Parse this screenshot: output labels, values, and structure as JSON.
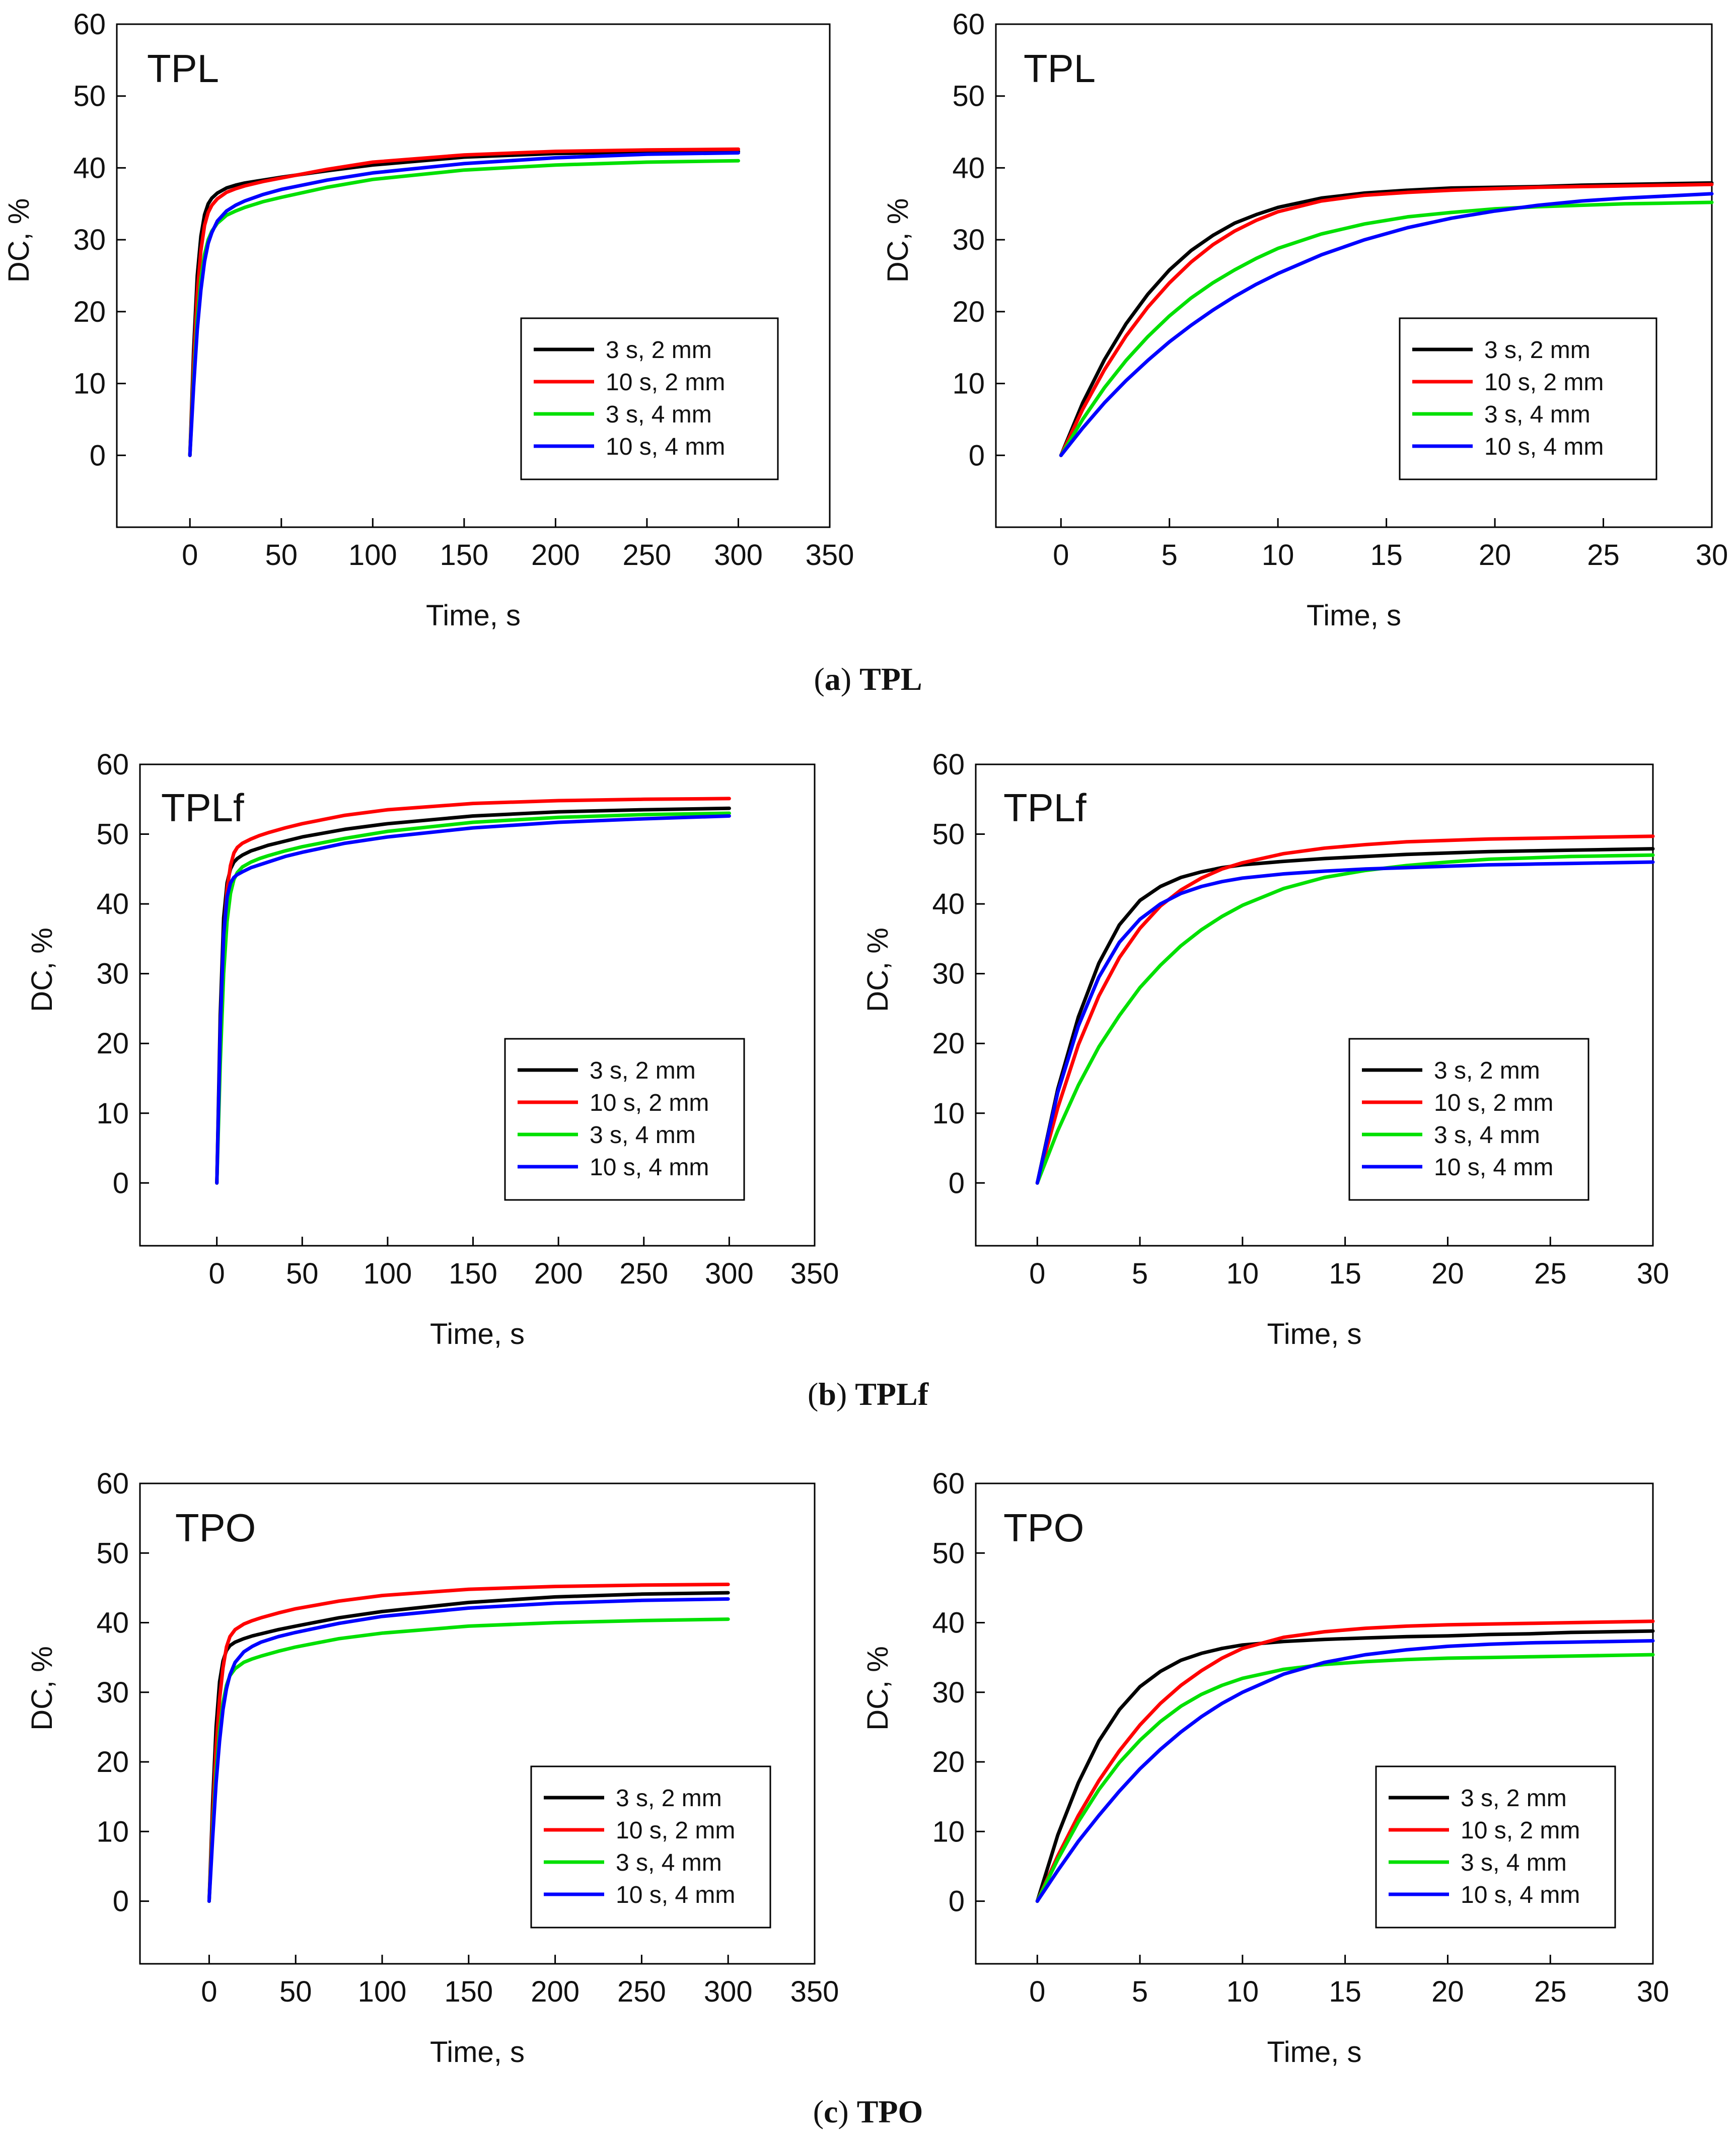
{
  "figure": {
    "captions": [
      {
        "letter": "a",
        "name": "TPL"
      },
      {
        "letter": "b",
        "name": "TPLf"
      },
      {
        "letter": "c",
        "name": "TPO"
      }
    ]
  },
  "chart_data": [
    {
      "type": "line",
      "panel": "TPL (0-300 s)",
      "label": "TPL",
      "xlabel": "Time, s",
      "ylabel": "DC, %",
      "xlim": [
        -40,
        350
      ],
      "ylim": [
        -10,
        60
      ],
      "xticks": [
        0,
        50,
        100,
        150,
        200,
        250,
        300,
        350
      ],
      "yticks": [
        0,
        10,
        20,
        30,
        40,
        50,
        60
      ],
      "x": [
        0,
        2,
        4,
        6,
        8,
        10,
        12,
        15,
        20,
        25,
        30,
        40,
        50,
        75,
        100,
        150,
        200,
        250,
        300
      ],
      "series": [
        {
          "name": "3 s, 2 mm",
          "color": "#000000",
          "values": [
            0,
            14.5,
            25.0,
            30.5,
            33.5,
            35.0,
            35.8,
            36.5,
            37.2,
            37.6,
            37.9,
            38.3,
            38.7,
            39.6,
            40.4,
            41.5,
            42.0,
            42.2,
            42.3
          ]
        },
        {
          "name": "10 s, 2 mm",
          "color": "#ff0000",
          "values": [
            0,
            12.5,
            22.5,
            28.5,
            32.0,
            33.8,
            34.8,
            35.7,
            36.6,
            37.1,
            37.5,
            38.1,
            38.6,
            39.8,
            40.8,
            41.8,
            42.3,
            42.5,
            42.6
          ]
        },
        {
          "name": "3 s, 4 mm",
          "color": "#00e000",
          "values": [
            0,
            10.5,
            19.0,
            24.5,
            28.0,
            30.0,
            31.2,
            32.3,
            33.4,
            34.0,
            34.5,
            35.3,
            35.9,
            37.3,
            38.4,
            39.7,
            40.4,
            40.8,
            41.0
          ]
        },
        {
          "name": "10 s, 4 mm",
          "color": "#0000ff",
          "values": [
            0,
            9.5,
            17.5,
            23.0,
            27.0,
            29.5,
            31.0,
            32.6,
            34.0,
            34.8,
            35.4,
            36.3,
            37.0,
            38.3,
            39.3,
            40.6,
            41.4,
            41.9,
            42.1
          ]
        }
      ]
    },
    {
      "type": "line",
      "panel": "TPL (0-30 s)",
      "label": "TPL",
      "xlabel": "Time, s",
      "ylabel": "DC, %",
      "xlim": [
        -3,
        30
      ],
      "ylim": [
        -10,
        60
      ],
      "xticks": [
        0,
        5,
        10,
        15,
        20,
        25,
        30
      ],
      "yticks": [
        0,
        10,
        20,
        30,
        40,
        50,
        60
      ],
      "x": [
        0,
        1,
        2,
        3,
        4,
        5,
        6,
        7,
        8,
        9,
        10,
        12,
        14,
        16,
        18,
        20,
        22,
        24,
        26,
        28,
        30
      ],
      "series": [
        {
          "name": "3 s, 2 mm",
          "color": "#000000",
          "values": [
            0,
            7.3,
            13.3,
            18.3,
            22.4,
            25.8,
            28.5,
            30.6,
            32.3,
            33.5,
            34.5,
            35.8,
            36.5,
            36.9,
            37.2,
            37.3,
            37.4,
            37.6,
            37.7,
            37.8,
            37.9
          ]
        },
        {
          "name": "10 s, 2 mm",
          "color": "#ff0000",
          "values": [
            0,
            6.4,
            11.9,
            16.6,
            20.6,
            24.0,
            26.9,
            29.3,
            31.2,
            32.7,
            33.9,
            35.4,
            36.2,
            36.6,
            36.9,
            37.1,
            37.3,
            37.4,
            37.5,
            37.6,
            37.7
          ]
        },
        {
          "name": "3 s, 4 mm",
          "color": "#00e000",
          "values": [
            0,
            5.0,
            9.4,
            13.2,
            16.5,
            19.4,
            21.9,
            24.0,
            25.8,
            27.4,
            28.8,
            30.8,
            32.2,
            33.2,
            33.8,
            34.3,
            34.6,
            34.8,
            35.0,
            35.1,
            35.2
          ]
        },
        {
          "name": "10 s, 4 mm",
          "color": "#0000ff",
          "values": [
            0,
            3.8,
            7.3,
            10.4,
            13.2,
            15.8,
            18.1,
            20.2,
            22.1,
            23.8,
            25.3,
            27.9,
            30.0,
            31.7,
            33.0,
            34.0,
            34.8,
            35.4,
            35.8,
            36.1,
            36.4
          ]
        }
      ]
    },
    {
      "type": "line",
      "panel": "TPLf (0-300 s)",
      "label": "TPLf",
      "xlabel": "Time, s",
      "ylabel": "DC, %",
      "xlim": [
        -45,
        350
      ],
      "ylim": [
        -9,
        60
      ],
      "xticks": [
        0,
        50,
        100,
        150,
        200,
        250,
        300,
        350
      ],
      "yticks": [
        0,
        10,
        20,
        30,
        40,
        50,
        60
      ],
      "x": [
        0,
        2,
        4,
        6,
        8,
        10,
        12,
        15,
        20,
        25,
        30,
        40,
        50,
        75,
        100,
        150,
        200,
        250,
        300
      ],
      "series": [
        {
          "name": "3 s, 2 mm",
          "color": "#000000",
          "values": [
            0,
            24.0,
            38.0,
            43.0,
            45.0,
            46.0,
            46.5,
            47.0,
            47.6,
            48.0,
            48.4,
            49.0,
            49.6,
            50.7,
            51.5,
            52.6,
            53.2,
            53.5,
            53.7
          ]
        },
        {
          "name": "10 s, 2 mm",
          "color": "#ff0000",
          "values": [
            0,
            21.0,
            35.0,
            42.0,
            45.5,
            47.3,
            48.1,
            48.7,
            49.3,
            49.8,
            50.2,
            50.9,
            51.5,
            52.7,
            53.5,
            54.4,
            54.8,
            55.0,
            55.1
          ]
        },
        {
          "name": "3 s, 4 mm",
          "color": "#00e000",
          "values": [
            0,
            17.0,
            30.0,
            37.5,
            41.5,
            43.5,
            44.5,
            45.3,
            46.0,
            46.5,
            46.9,
            47.6,
            48.2,
            49.4,
            50.4,
            51.7,
            52.4,
            52.8,
            53.0
          ]
        },
        {
          "name": "10 s, 4 mm",
          "color": "#0000ff",
          "values": [
            0,
            22.0,
            35.5,
            41.0,
            43.0,
            43.8,
            44.2,
            44.6,
            45.2,
            45.6,
            46.0,
            46.8,
            47.4,
            48.7,
            49.6,
            50.9,
            51.7,
            52.2,
            52.6
          ]
        }
      ]
    },
    {
      "type": "line",
      "panel": "TPLf (0-30 s)",
      "label": "TPLf",
      "xlabel": "Time, s",
      "ylabel": "DC, %",
      "xlim": [
        -3,
        30
      ],
      "ylim": [
        -9,
        60
      ],
      "xticks": [
        0,
        5,
        10,
        15,
        20,
        25,
        30
      ],
      "yticks": [
        0,
        10,
        20,
        30,
        40,
        50,
        60
      ],
      "x": [
        0,
        1,
        2,
        3,
        4,
        5,
        6,
        7,
        8,
        9,
        10,
        12,
        14,
        16,
        18,
        20,
        22,
        24,
        26,
        28,
        30
      ],
      "series": [
        {
          "name": "3 s, 2 mm",
          "color": "#000000",
          "values": [
            0,
            13.5,
            23.8,
            31.5,
            37.0,
            40.5,
            42.5,
            43.8,
            44.6,
            45.2,
            45.6,
            46.1,
            46.5,
            46.8,
            47.1,
            47.3,
            47.5,
            47.6,
            47.7,
            47.8,
            47.9
          ]
        },
        {
          "name": "10 s, 2 mm",
          "color": "#ff0000",
          "values": [
            0,
            10.8,
            19.8,
            26.8,
            32.3,
            36.5,
            39.7,
            42.0,
            43.7,
            45.0,
            45.9,
            47.2,
            48.0,
            48.5,
            48.9,
            49.1,
            49.3,
            49.4,
            49.5,
            49.6,
            49.7
          ]
        },
        {
          "name": "3 s, 4 mm",
          "color": "#00e000",
          "values": [
            0,
            7.5,
            14.0,
            19.5,
            24.0,
            28.0,
            31.2,
            34.0,
            36.3,
            38.2,
            39.8,
            42.2,
            43.8,
            44.8,
            45.5,
            46.0,
            46.4,
            46.6,
            46.8,
            46.9,
            47.0
          ]
        },
        {
          "name": "10 s, 4 mm",
          "color": "#0000ff",
          "values": [
            0,
            13.0,
            22.5,
            29.5,
            34.5,
            37.8,
            40.0,
            41.5,
            42.5,
            43.2,
            43.7,
            44.3,
            44.7,
            45.0,
            45.2,
            45.4,
            45.6,
            45.7,
            45.8,
            45.9,
            46.0
          ]
        }
      ]
    },
    {
      "type": "line",
      "panel": "TPO (0-300 s)",
      "label": "TPO",
      "xlabel": "Time, s",
      "ylabel": "DC, %",
      "xlim": [
        -40,
        350
      ],
      "ylim": [
        -9,
        60
      ],
      "xticks": [
        0,
        50,
        100,
        150,
        200,
        250,
        300,
        350
      ],
      "yticks": [
        0,
        10,
        20,
        30,
        40,
        50,
        60
      ],
      "x": [
        0,
        2,
        4,
        6,
        8,
        10,
        12,
        15,
        20,
        25,
        30,
        40,
        50,
        75,
        100,
        150,
        200,
        250,
        300
      ],
      "series": [
        {
          "name": "3 s, 2 mm",
          "color": "#000000",
          "values": [
            0,
            14.0,
            25.0,
            31.5,
            34.5,
            36.0,
            36.7,
            37.2,
            37.7,
            38.1,
            38.4,
            39.0,
            39.5,
            40.7,
            41.6,
            42.9,
            43.7,
            44.1,
            44.3
          ]
        },
        {
          "name": "10 s, 2 mm",
          "color": "#ff0000",
          "values": [
            0,
            12.0,
            22.0,
            29.0,
            33.5,
            36.5,
            38.0,
            39.0,
            39.8,
            40.3,
            40.7,
            41.4,
            42.0,
            43.1,
            43.9,
            44.8,
            45.2,
            45.4,
            45.5
          ]
        },
        {
          "name": "3 s, 4 mm",
          "color": "#00e000",
          "values": [
            0,
            10.0,
            18.5,
            24.5,
            28.5,
            31.0,
            32.4,
            33.4,
            34.3,
            34.8,
            35.2,
            35.9,
            36.5,
            37.7,
            38.5,
            39.5,
            40.0,
            40.3,
            40.5
          ]
        },
        {
          "name": "10 s, 4 mm",
          "color": "#0000ff",
          "values": [
            0,
            9.0,
            17.0,
            23.0,
            27.5,
            30.5,
            32.5,
            34.3,
            35.8,
            36.6,
            37.2,
            38.0,
            38.6,
            39.9,
            40.9,
            42.1,
            42.8,
            43.2,
            43.4
          ]
        }
      ]
    },
    {
      "type": "line",
      "panel": "TPO (0-30 s)",
      "label": "TPO",
      "xlabel": "Time, s",
      "ylabel": "DC, %",
      "xlim": [
        -3,
        30
      ],
      "ylim": [
        -9,
        60
      ],
      "xticks": [
        0,
        5,
        10,
        15,
        20,
        25,
        30
      ],
      "yticks": [
        0,
        10,
        20,
        30,
        40,
        50,
        60
      ],
      "x": [
        0,
        1,
        2,
        3,
        4,
        5,
        6,
        7,
        8,
        9,
        10,
        12,
        14,
        16,
        18,
        20,
        22,
        24,
        26,
        28,
        30
      ],
      "series": [
        {
          "name": "3 s, 2 mm",
          "color": "#000000",
          "values": [
            0,
            9.5,
            17.0,
            23.0,
            27.5,
            30.8,
            33.0,
            34.6,
            35.6,
            36.3,
            36.8,
            37.3,
            37.6,
            37.8,
            38.0,
            38.1,
            38.3,
            38.4,
            38.6,
            38.7,
            38.8
          ]
        },
        {
          "name": "10 s, 2 mm",
          "color": "#ff0000",
          "values": [
            0,
            6.5,
            12.3,
            17.3,
            21.6,
            25.3,
            28.4,
            31.0,
            33.1,
            34.9,
            36.3,
            37.9,
            38.7,
            39.2,
            39.5,
            39.7,
            39.8,
            39.9,
            40.0,
            40.1,
            40.2
          ]
        },
        {
          "name": "3 s, 4 mm",
          "color": "#00e000",
          "values": [
            0,
            6.0,
            11.4,
            16.0,
            19.9,
            23.1,
            25.8,
            28.0,
            29.7,
            31.0,
            32.0,
            33.3,
            34.0,
            34.4,
            34.7,
            34.9,
            35.0,
            35.1,
            35.2,
            35.3,
            35.4
          ]
        },
        {
          "name": "10 s, 4 mm",
          "color": "#0000ff",
          "values": [
            0,
            4.4,
            8.6,
            12.3,
            15.8,
            19.0,
            21.8,
            24.3,
            26.5,
            28.4,
            30.0,
            32.6,
            34.3,
            35.4,
            36.1,
            36.6,
            36.9,
            37.1,
            37.2,
            37.3,
            37.4
          ]
        }
      ]
    }
  ]
}
